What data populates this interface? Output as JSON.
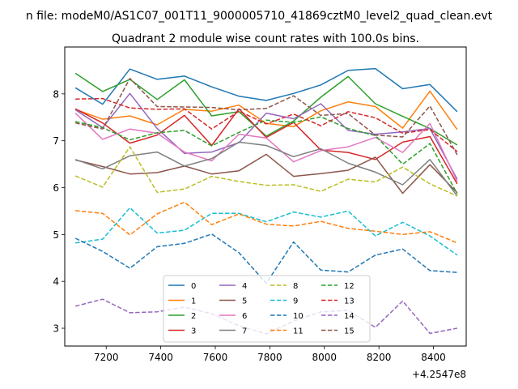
{
  "figure": {
    "suptitle": "n file: modeM0/AS1C07_001T11_9000005710_41869cztM0_level2_quad_clean.evt",
    "offset_label": "+4.2547e8"
  },
  "chart_data": {
    "type": "line",
    "title": "Quadrant 2 module wise count rates with 100.0s bins.",
    "xlabel": "",
    "ylabel": "",
    "x_offset": 425470000,
    "xlim": [
      7048,
      8520
    ],
    "ylim": [
      2.62,
      9.0
    ],
    "x_ticks": [
      7200,
      7400,
      7600,
      7800,
      8000,
      8200,
      8400
    ],
    "x_tick_labels": [
      "7200",
      "7400",
      "7600",
      "7800",
      "8000",
      "8200",
      "8400"
    ],
    "y_ticks": [
      3,
      4,
      5,
      6,
      7,
      8
    ],
    "y_tick_labels": [
      "3",
      "4",
      "5",
      "6",
      "7",
      "8"
    ],
    "grid": false,
    "legend_position": "lower center",
    "x": [
      7087,
      7187,
      7287,
      7387,
      7487,
      7587,
      7687,
      7787,
      7887,
      7987,
      8087,
      8187,
      8287,
      8387,
      8487
    ],
    "series": [
      {
        "name": "0",
        "color": "#1f77b4",
        "dash": "solid",
        "values": [
          8.13,
          7.78,
          8.53,
          8.31,
          8.38,
          8.15,
          7.95,
          7.86,
          8.01,
          8.19,
          8.5,
          8.54,
          8.11,
          8.2,
          7.62
        ]
      },
      {
        "name": "1",
        "color": "#ff7f0e",
        "dash": "solid",
        "values": [
          7.67,
          7.46,
          7.53,
          7.34,
          7.67,
          7.63,
          7.76,
          7.37,
          7.3,
          7.64,
          7.83,
          7.73,
          7.27,
          8.06,
          7.24
        ]
      },
      {
        "name": "2",
        "color": "#2ca02c",
        "dash": "solid",
        "values": [
          8.44,
          8.05,
          8.31,
          7.88,
          8.3,
          7.53,
          7.62,
          7.1,
          7.42,
          7.93,
          8.37,
          7.79,
          7.52,
          7.26,
          6.91
        ]
      },
      {
        "name": "3",
        "color": "#d62728",
        "dash": "solid",
        "values": [
          7.68,
          7.38,
          6.95,
          7.12,
          7.54,
          6.9,
          7.68,
          7.07,
          7.39,
          6.8,
          6.75,
          6.6,
          6.97,
          7.09,
          6.08
        ]
      },
      {
        "name": "4",
        "color": "#9467bd",
        "dash": "solid",
        "values": [
          7.66,
          7.28,
          8.01,
          7.26,
          6.73,
          6.76,
          6.96,
          7.59,
          7.47,
          7.79,
          7.22,
          7.14,
          7.19,
          7.26,
          6.18
        ]
      },
      {
        "name": "5",
        "color": "#8c564b",
        "dash": "solid",
        "values": [
          6.59,
          6.45,
          6.29,
          6.32,
          6.46,
          6.29,
          6.36,
          6.71,
          6.24,
          6.3,
          6.37,
          6.65,
          5.88,
          6.49,
          5.89
        ]
      },
      {
        "name": "6",
        "color": "#e377c2",
        "dash": "solid",
        "values": [
          7.59,
          7.03,
          7.25,
          7.16,
          6.76,
          6.57,
          7.14,
          7.06,
          6.55,
          6.79,
          6.87,
          7.07,
          6.75,
          7.37,
          6.13
        ]
      },
      {
        "name": "7",
        "color": "#7f7f7f",
        "dash": "solid",
        "values": [
          6.6,
          6.4,
          6.68,
          6.76,
          6.46,
          6.62,
          6.97,
          6.9,
          6.66,
          6.83,
          6.52,
          6.33,
          6.06,
          6.6,
          5.82
        ]
      },
      {
        "name": "8",
        "color": "#bcbd22",
        "dash": "dashed",
        "values": [
          6.25,
          6.01,
          6.87,
          5.9,
          5.97,
          6.24,
          6.13,
          6.05,
          6.06,
          5.92,
          6.18,
          6.12,
          6.44,
          6.08,
          5.82
        ]
      },
      {
        "name": "9",
        "color": "#17becf",
        "dash": "dashed",
        "values": [
          4.82,
          4.9,
          5.57,
          5.03,
          5.09,
          5.45,
          5.45,
          5.27,
          5.48,
          5.37,
          5.5,
          4.97,
          5.26,
          4.97,
          4.56
        ]
      },
      {
        "name": "10",
        "color": "#1f77b4",
        "dash": "dashed",
        "values": [
          4.92,
          4.64,
          4.28,
          4.74,
          4.81,
          5.01,
          4.61,
          3.96,
          4.84,
          4.24,
          4.2,
          4.56,
          4.69,
          4.23,
          4.19
        ]
      },
      {
        "name": "11",
        "color": "#ff7f0e",
        "dash": "dashed",
        "values": [
          5.51,
          5.45,
          4.99,
          5.44,
          5.69,
          5.21,
          5.44,
          5.22,
          5.18,
          5.28,
          5.13,
          5.07,
          5.0,
          5.06,
          4.82
        ]
      },
      {
        "name": "12",
        "color": "#2ca02c",
        "dash": "dashed",
        "values": [
          7.41,
          7.28,
          7.02,
          7.17,
          7.22,
          6.89,
          7.18,
          7.44,
          7.39,
          7.51,
          7.26,
          7.11,
          6.5,
          6.94,
          5.87
        ]
      },
      {
        "name": "13",
        "color": "#d62728",
        "dash": "dashed",
        "values": [
          7.89,
          7.9,
          7.7,
          7.67,
          7.68,
          7.25,
          7.63,
          7.36,
          7.57,
          7.32,
          7.62,
          7.49,
          7.16,
          7.24,
          6.77
        ]
      },
      {
        "name": "14",
        "color": "#9467bd",
        "dash": "dashed",
        "values": [
          3.47,
          3.62,
          3.33,
          3.35,
          3.45,
          3.31,
          3.05,
          2.88,
          3.15,
          3.35,
          3.38,
          3.02,
          3.58,
          2.89,
          3.0
        ]
      },
      {
        "name": "15",
        "color": "#8c564b",
        "dash": "dashed",
        "values": [
          7.38,
          7.25,
          8.33,
          7.73,
          7.72,
          7.71,
          7.66,
          7.69,
          7.96,
          7.54,
          7.58,
          7.12,
          7.08,
          7.74,
          6.7
        ]
      }
    ]
  }
}
